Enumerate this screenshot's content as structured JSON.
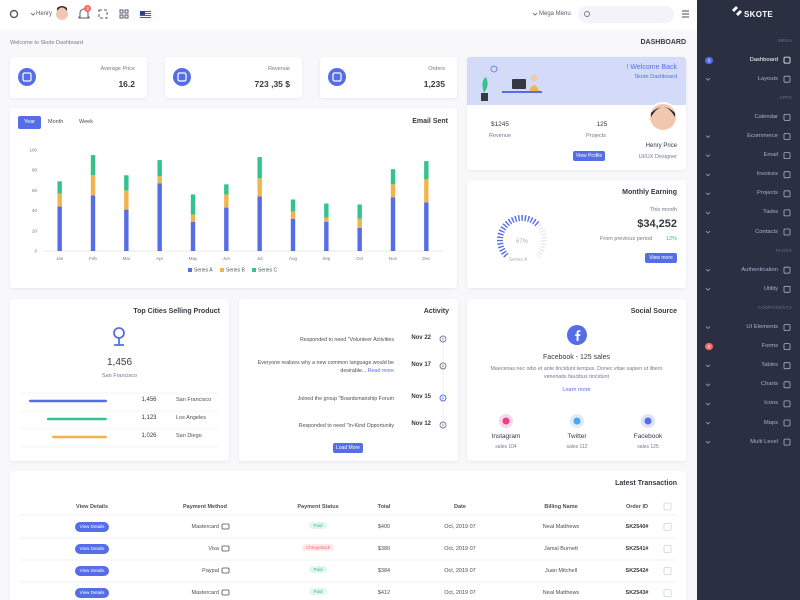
{
  "topbar": {
    "user": "Henry",
    "notifications": "3",
    "mega_menu": "Mega Menu",
    "search_placeholder": "Search"
  },
  "page": {
    "breadcrumb": "Welcome to Skote Dashboard",
    "title": "DASHBOARD"
  },
  "stats": [
    {
      "label": "Average Price",
      "value": "16.2"
    },
    {
      "label": "Revenue",
      "value": "723 ,35 $"
    },
    {
      "label": "Orders",
      "value": "1,235"
    }
  ],
  "welcome": {
    "title": "! Welcome Back",
    "subtitle": "Skote Dashboard",
    "revenue_value": "$1245",
    "revenue_label": "Revenue",
    "projects_value": "125",
    "projects_label": "Projects",
    "name": "Henry Price",
    "role": "UI/UX Designer",
    "button": "View Profile"
  },
  "chart_data": {
    "type": "bar",
    "stacked": true,
    "title": "Email Sent",
    "tabs": [
      "Year",
      "Month",
      "Week"
    ],
    "active_tab": 0,
    "categories": [
      "Jan",
      "Feb",
      "Mar",
      "Apr",
      "May",
      "Jun",
      "Jul",
      "Aug",
      "Sep",
      "Oct",
      "Nov",
      "Dec"
    ],
    "series": [
      {
        "name": "Series A",
        "color": "#556ee6",
        "values": [
          44,
          55,
          41,
          67,
          29,
          43,
          54,
          32,
          29,
          23,
          53,
          48
        ]
      },
      {
        "name": "Series B",
        "color": "#f1b44c",
        "values": [
          13,
          20,
          19,
          7,
          7,
          13,
          18,
          7,
          4,
          9,
          13,
          23
        ]
      },
      {
        "name": "Series C",
        "color": "#34c38f",
        "values": [
          12,
          20,
          15,
          16,
          20,
          10,
          21,
          12,
          14,
          14,
          15,
          18
        ]
      }
    ],
    "ylim": [
      0,
      100
    ],
    "yticks": [
      0,
      20,
      40,
      60,
      80,
      100
    ],
    "grid": false,
    "legend": "bottom"
  },
  "monthly_earning": {
    "title": "Monthly Earning",
    "period": "This month",
    "amount": "$34,252",
    "comparison": "From previous period",
    "change": "12%",
    "button": "View more",
    "gauge": {
      "value": 67,
      "label": "67%",
      "name": "Series A",
      "color": "#556ee6"
    }
  },
  "top_cities": {
    "title": "Top Cities Selling Product",
    "top_value": "1,456",
    "top_city": "San Francisco",
    "rows": [
      {
        "value": 1456,
        "label": "1,456",
        "city": "San Francisco",
        "color": "#556ee6"
      },
      {
        "value": 1123,
        "label": "1,123",
        "city": "Los Angeles",
        "color": "#34c38f"
      },
      {
        "value": 1026,
        "label": "1,026",
        "city": "San Diego",
        "color": "#f1b44c"
      }
    ]
  },
  "activity": {
    "title": "Activity",
    "items": [
      {
        "text": "Responded to need \"Volunteer Activities",
        "date": "Nov 22"
      },
      {
        "text": "Everyone realizes why a new common language would be desirable...",
        "link": "Read more",
        "date": "Nov 17"
      },
      {
        "text": "Joined the group \"Boardsmanship Forum",
        "date": "Nov 15"
      },
      {
        "text": "Responded to need \"In-Kind Opportunity",
        "date": "Nov 12"
      }
    ],
    "button": "Load More"
  },
  "social": {
    "title": "Social Source",
    "headline": "Facebook - 125 sales",
    "description": "Maecenas nec odio et ante tincidunt tempus. Donec vitae sapien ut libero venenatis faucibus tincidunt",
    "link": "Learn more",
    "sources": [
      {
        "name": "Instagram",
        "sales": "sales 104",
        "color": "#e83e8c"
      },
      {
        "name": "Twitter",
        "sales": "sales 112",
        "color": "#50a5f1"
      },
      {
        "name": "Facebook",
        "sales": "sales 125",
        "color": "#556ee6"
      }
    ]
  },
  "transactions": {
    "title": "Latest Transaction",
    "columns": [
      "View Details",
      "Payment Method",
      "Payment Status",
      "Total",
      "Date",
      "Billing Name",
      "Order ID"
    ],
    "rows": [
      {
        "cells": [
          "View Details",
          "Mastercard",
          "Paid",
          "$400",
          "Oct, 2019 07",
          "Neal Matthews",
          "SK2540#"
        ],
        "status_color": "#34c38f"
      },
      {
        "cells": [
          "View Details",
          "Visa",
          "Chargeback",
          "$380",
          "Oct, 2019 07",
          "Jamal Burnett",
          "SK2541#"
        ],
        "status_color": "#f46a6a"
      },
      {
        "cells": [
          "View Details",
          "Paypal",
          "Paid",
          "$384",
          "Oct, 2019 07",
          "Juan Mitchell",
          "SK2542#"
        ],
        "status_color": "#34c38f"
      },
      {
        "cells": [
          "View Details",
          "Mastercard",
          "Paid",
          "$412",
          "Oct, 2019 07",
          "Neal Matthews",
          "SK2543#"
        ],
        "status_color": "#34c38f"
      }
    ]
  },
  "sidebar": {
    "logo": "SKOTE",
    "items": [
      {
        "section": "MENU"
      },
      {
        "label": "Dashboard",
        "badge": "3",
        "badge_color": "#556ee6",
        "active": true
      },
      {
        "label": "Layouts",
        "arrow": true
      },
      {
        "section": "APPS"
      },
      {
        "label": "Calendar"
      },
      {
        "label": "Ecommerce",
        "arrow": true
      },
      {
        "label": "Email",
        "arrow": true
      },
      {
        "label": "Invoices",
        "arrow": true
      },
      {
        "label": "Projects",
        "arrow": true
      },
      {
        "label": "Tasks",
        "arrow": true
      },
      {
        "label": "Contacts",
        "arrow": true
      },
      {
        "section": "PAGES"
      },
      {
        "label": "Authentication",
        "arrow": true
      },
      {
        "label": "Utility",
        "arrow": true
      },
      {
        "section": "COMPONENTS"
      },
      {
        "label": "UI Elements",
        "arrow": true
      },
      {
        "label": "Forms",
        "badge": "6",
        "badge_color": "#f46a6a"
      },
      {
        "label": "Tables",
        "arrow": true
      },
      {
        "label": "Charts",
        "arrow": true
      },
      {
        "label": "Icons",
        "arrow": true
      },
      {
        "label": "Maps",
        "arrow": true
      },
      {
        "label": "Multi Level",
        "arrow": true
      }
    ]
  }
}
